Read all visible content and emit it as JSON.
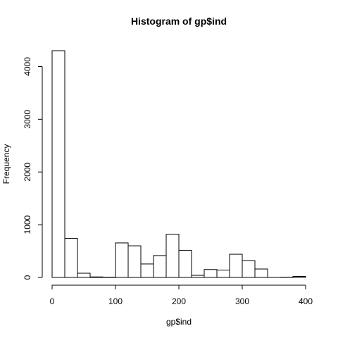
{
  "chart_data": {
    "type": "bar",
    "title": "Histogram of gp$ind",
    "xlabel": "gp$ind",
    "ylabel": "Frequency",
    "bin_width": 20,
    "bins": [
      {
        "start": 0,
        "end": 20,
        "count": 4300
      },
      {
        "start": 20,
        "end": 40,
        "count": 740
      },
      {
        "start": 40,
        "end": 60,
        "count": 80
      },
      {
        "start": 60,
        "end": 80,
        "count": 10
      },
      {
        "start": 80,
        "end": 100,
        "count": 5
      },
      {
        "start": 100,
        "end": 120,
        "count": 655
      },
      {
        "start": 120,
        "end": 140,
        "count": 600
      },
      {
        "start": 140,
        "end": 160,
        "count": 255
      },
      {
        "start": 160,
        "end": 180,
        "count": 415
      },
      {
        "start": 180,
        "end": 200,
        "count": 820
      },
      {
        "start": 200,
        "end": 220,
        "count": 515
      },
      {
        "start": 220,
        "end": 240,
        "count": 40
      },
      {
        "start": 240,
        "end": 260,
        "count": 150
      },
      {
        "start": 260,
        "end": 280,
        "count": 140
      },
      {
        "start": 280,
        "end": 300,
        "count": 440
      },
      {
        "start": 300,
        "end": 320,
        "count": 320
      },
      {
        "start": 320,
        "end": 340,
        "count": 160
      },
      {
        "start": 340,
        "end": 360,
        "count": 0
      },
      {
        "start": 360,
        "end": 380,
        "count": 3
      },
      {
        "start": 380,
        "end": 400,
        "count": 20
      }
    ],
    "xlim": [
      0,
      400
    ],
    "ylim": [
      0,
      4300
    ],
    "x_ticks": [
      0,
      100,
      200,
      300,
      400
    ],
    "x_tick_labels": [
      "0",
      "100",
      "200",
      "300",
      "400"
    ],
    "y_ticks": [
      0,
      1000,
      2000,
      3000,
      4000
    ],
    "y_tick_labels": [
      "0",
      "1000",
      "2000",
      "3000",
      "4000"
    ],
    "grid": false,
    "colors": {
      "bar_fill": "#ffffff",
      "bar_stroke": "#000000"
    }
  }
}
